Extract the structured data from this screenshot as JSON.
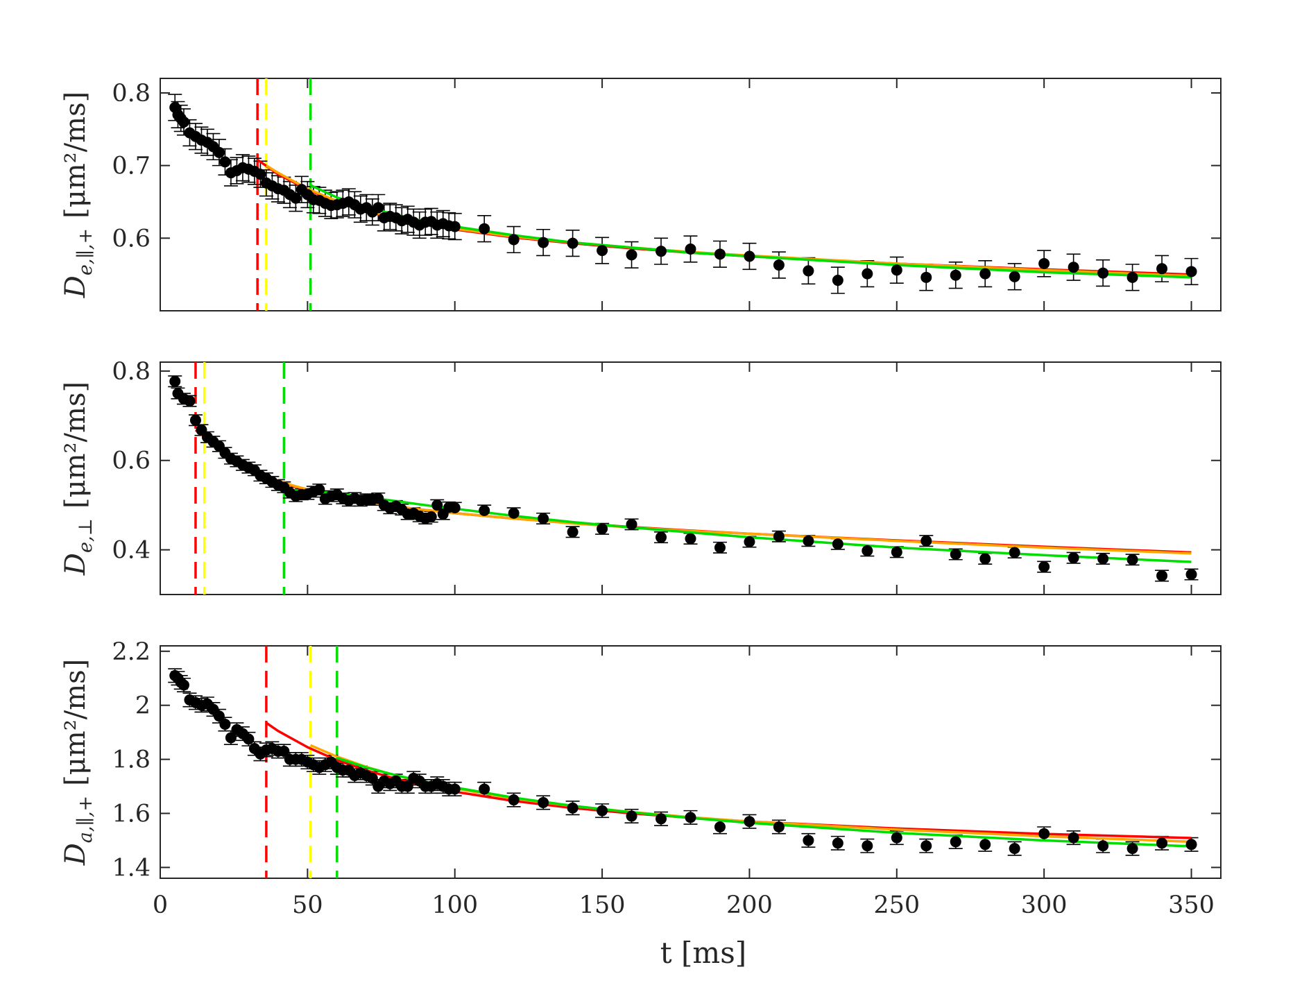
{
  "figure": {
    "xlabel": "t  [ms]"
  },
  "chart_data": [
    {
      "type": "scatter",
      "ylabel_main": "D",
      "ylabel_sub": "e,∥,+",
      "ylabel_unit": "[μm²/ms]",
      "xlim": [
        0,
        360
      ],
      "ylim": [
        0.5,
        0.82
      ],
      "xticks": [
        "0",
        "50",
        "100",
        "150",
        "200",
        "250",
        "300",
        "350"
      ],
      "yticks": [
        {
          "v": 0.6,
          "label": "0.6"
        },
        {
          "v": 0.7,
          "label": "0.7"
        },
        {
          "v": 0.8,
          "label": "0.8"
        }
      ],
      "data": {
        "x": [
          5,
          6,
          7,
          8,
          10,
          12,
          14,
          16,
          18,
          20,
          22,
          24,
          26,
          28,
          30,
          32,
          34,
          36,
          38,
          40,
          42,
          44,
          46,
          48,
          50,
          52,
          54,
          56,
          58,
          60,
          62,
          64,
          66,
          68,
          70,
          72,
          74,
          76,
          78,
          80,
          82,
          84,
          86,
          88,
          90,
          92,
          94,
          96,
          98,
          100,
          110,
          120,
          130,
          140,
          150,
          160,
          170,
          180,
          190,
          200,
          210,
          220,
          230,
          240,
          250,
          260,
          270,
          280,
          290,
          300,
          310,
          320,
          330,
          340,
          350
        ],
        "y": [
          0.78,
          0.77,
          0.765,
          0.76,
          0.745,
          0.74,
          0.735,
          0.732,
          0.726,
          0.718,
          0.705,
          0.69,
          0.693,
          0.697,
          0.695,
          0.692,
          0.688,
          0.676,
          0.672,
          0.668,
          0.666,
          0.66,
          0.655,
          0.667,
          0.66,
          0.653,
          0.652,
          0.648,
          0.645,
          0.646,
          0.648,
          0.65,
          0.646,
          0.64,
          0.642,
          0.636,
          0.642,
          0.628,
          0.63,
          0.628,
          0.624,
          0.626,
          0.622,
          0.618,
          0.622,
          0.623,
          0.618,
          0.62,
          0.617,
          0.616,
          0.613,
          0.598,
          0.594,
          0.593,
          0.583,
          0.577,
          0.582,
          0.585,
          0.578,
          0.575,
          0.563,
          0.555,
          0.542,
          0.551,
          0.556,
          0.546,
          0.549,
          0.551,
          0.547,
          0.565,
          0.56,
          0.552,
          0.546,
          0.558,
          0.554
        ],
        "err": 0.018
      },
      "vlines": [
        {
          "x": 33,
          "color": "#ff0000"
        },
        {
          "x": 36,
          "color": "#ffff00"
        },
        {
          "x": 51,
          "color": "#00dd00"
        }
      ],
      "fits": [
        {
          "color": "#ff0000",
          "x": [
            33,
            40,
            50,
            60,
            70,
            80,
            90,
            100,
            120,
            140,
            160,
            180,
            200,
            250,
            300,
            350
          ],
          "y": [
            0.708,
            0.688,
            0.667,
            0.65,
            0.637,
            0.627,
            0.619,
            0.612,
            0.601,
            0.593,
            0.586,
            0.58,
            0.575,
            0.565,
            0.557,
            0.55
          ]
        },
        {
          "color": "#ffa500",
          "x": [
            36,
            40,
            50,
            60,
            70,
            80,
            90,
            100,
            120,
            140,
            160,
            180,
            200,
            250,
            300,
            350
          ],
          "y": [
            0.7,
            0.69,
            0.668,
            0.651,
            0.638,
            0.628,
            0.62,
            0.613,
            0.602,
            0.594,
            0.587,
            0.581,
            0.576,
            0.565,
            0.556,
            0.548
          ]
        },
        {
          "color": "#00dd00",
          "x": [
            51,
            60,
            70,
            80,
            90,
            100,
            120,
            140,
            160,
            180,
            200,
            250,
            300,
            350
          ],
          "y": [
            0.673,
            0.656,
            0.643,
            0.632,
            0.623,
            0.616,
            0.604,
            0.594,
            0.587,
            0.58,
            0.575,
            0.563,
            0.553,
            0.546
          ]
        }
      ]
    },
    {
      "type": "scatter",
      "ylabel_main": "D",
      "ylabel_sub": "e,⊥",
      "ylabel_unit": "[μm²/ms]",
      "xlim": [
        0,
        360
      ],
      "ylim": [
        0.3,
        0.82
      ],
      "xticks": [
        "0",
        "50",
        "100",
        "150",
        "200",
        "250",
        "300",
        "350"
      ],
      "yticks": [
        {
          "v": 0.4,
          "label": "0.4"
        },
        {
          "v": 0.6,
          "label": "0.6"
        },
        {
          "v": 0.8,
          "label": "0.8"
        }
      ],
      "data": {
        "x": [
          5,
          6,
          8,
          10,
          12,
          14,
          16,
          18,
          20,
          22,
          24,
          26,
          28,
          30,
          32,
          34,
          36,
          38,
          40,
          42,
          44,
          46,
          48,
          50,
          52,
          54,
          56,
          58,
          60,
          62,
          64,
          66,
          68,
          70,
          72,
          74,
          76,
          78,
          80,
          82,
          84,
          86,
          88,
          90,
          92,
          94,
          96,
          98,
          100,
          110,
          120,
          130,
          140,
          150,
          160,
          170,
          180,
          190,
          200,
          210,
          220,
          230,
          240,
          250,
          260,
          270,
          280,
          290,
          300,
          310,
          320,
          330,
          340,
          350
        ],
        "y": [
          0.777,
          0.75,
          0.738,
          0.733,
          0.69,
          0.668,
          0.652,
          0.642,
          0.632,
          0.617,
          0.604,
          0.598,
          0.59,
          0.584,
          0.578,
          0.566,
          0.56,
          0.552,
          0.545,
          0.54,
          0.528,
          0.52,
          0.524,
          0.525,
          0.53,
          0.535,
          0.514,
          0.52,
          0.524,
          0.515,
          0.51,
          0.516,
          0.51,
          0.513,
          0.512,
          0.515,
          0.5,
          0.493,
          0.498,
          0.49,
          0.48,
          0.482,
          0.475,
          0.47,
          0.474,
          0.5,
          0.48,
          0.495,
          0.494,
          0.488,
          0.482,
          0.47,
          0.44,
          0.447,
          0.457,
          0.428,
          0.425,
          0.405,
          0.418,
          0.43,
          0.42,
          0.413,
          0.398,
          0.395,
          0.42,
          0.39,
          0.38,
          0.394,
          0.362,
          0.382,
          0.38,
          0.378,
          0.342,
          0.345
        ],
        "err": 0.012
      },
      "vlines": [
        {
          "x": 12,
          "color": "#ff0000"
        },
        {
          "x": 15,
          "color": "#ffff00"
        },
        {
          "x": 42,
          "color": "#00dd00"
        }
      ],
      "fits": [
        {
          "color": "#ff0000",
          "x": [
            12,
            15,
            20,
            25,
            30,
            35,
            40,
            45,
            50,
            60,
            70,
            80,
            90,
            100,
            120,
            140,
            160,
            180,
            200,
            250,
            300,
            350
          ],
          "y": [
            0.668,
            0.653,
            0.625,
            0.602,
            0.583,
            0.567,
            0.554,
            0.543,
            0.534,
            0.519,
            0.507,
            0.497,
            0.489,
            0.482,
            0.47,
            0.46,
            0.451,
            0.443,
            0.436,
            0.421,
            0.407,
            0.394
          ]
        },
        {
          "color": "#ffa500",
          "x": [
            15,
            20,
            25,
            30,
            35,
            40,
            45,
            50,
            60,
            70,
            80,
            90,
            100,
            120,
            140,
            160,
            180,
            200,
            250,
            300,
            350
          ],
          "y": [
            0.66,
            0.63,
            0.605,
            0.585,
            0.568,
            0.555,
            0.544,
            0.535,
            0.519,
            0.507,
            0.497,
            0.489,
            0.482,
            0.47,
            0.459,
            0.45,
            0.442,
            0.436,
            0.42,
            0.405,
            0.392
          ]
        },
        {
          "color": "#00dd00",
          "x": [
            42,
            50,
            60,
            70,
            80,
            90,
            100,
            120,
            140,
            160,
            180,
            200,
            250,
            300,
            350
          ],
          "y": [
            0.534,
            0.532,
            0.526,
            0.518,
            0.509,
            0.5,
            0.492,
            0.476,
            0.462,
            0.45,
            0.439,
            0.428,
            0.405,
            0.388,
            0.373
          ]
        }
      ]
    },
    {
      "type": "scatter",
      "ylabel_main": "D",
      "ylabel_sub": "a,∥,+",
      "ylabel_unit": "[μm²/ms]",
      "xlim": [
        0,
        360
      ],
      "ylim": [
        1.36,
        2.22
      ],
      "xticks": [
        "0",
        "50",
        "100",
        "150",
        "200",
        "250",
        "300",
        "350"
      ],
      "yticks": [
        {
          "v": 1.4,
          "label": "1.4"
        },
        {
          "v": 1.6,
          "label": "1.6"
        },
        {
          "v": 1.8,
          "label": "1.8"
        },
        {
          "v": 2.0,
          "label": "2"
        },
        {
          "v": 2.2,
          "label": "2.2"
        }
      ],
      "data": {
        "x": [
          5,
          6,
          7,
          8,
          10,
          12,
          14,
          16,
          18,
          20,
          22,
          24,
          26,
          28,
          30,
          32,
          34,
          36,
          38,
          40,
          42,
          44,
          46,
          48,
          50,
          52,
          54,
          56,
          58,
          60,
          62,
          64,
          66,
          68,
          70,
          72,
          74,
          76,
          78,
          80,
          82,
          84,
          86,
          88,
          90,
          92,
          94,
          96,
          98,
          100,
          110,
          120,
          130,
          140,
          150,
          160,
          170,
          180,
          190,
          200,
          210,
          220,
          230,
          240,
          250,
          260,
          270,
          280,
          290,
          300,
          310,
          320,
          330,
          340,
          350
        ],
        "y": [
          2.11,
          2.1,
          2.085,
          2.075,
          2.02,
          2.01,
          2.0,
          2.005,
          1.985,
          1.96,
          1.93,
          1.88,
          1.91,
          1.895,
          1.875,
          1.84,
          1.82,
          1.835,
          1.84,
          1.83,
          1.83,
          1.8,
          1.8,
          1.8,
          1.79,
          1.78,
          1.77,
          1.78,
          1.79,
          1.77,
          1.76,
          1.76,
          1.74,
          1.75,
          1.74,
          1.73,
          1.7,
          1.72,
          1.71,
          1.72,
          1.7,
          1.7,
          1.73,
          1.72,
          1.7,
          1.7,
          1.71,
          1.7,
          1.69,
          1.69,
          1.69,
          1.65,
          1.64,
          1.62,
          1.61,
          1.59,
          1.58,
          1.585,
          1.55,
          1.57,
          1.55,
          1.5,
          1.49,
          1.48,
          1.51,
          1.48,
          1.495,
          1.485,
          1.47,
          1.525,
          1.51,
          1.48,
          1.47,
          1.49,
          1.485
        ],
        "err": 0.025
      },
      "vlines": [
        {
          "x": 36,
          "color": "#ff0000"
        },
        {
          "x": 51,
          "color": "#ffff00"
        },
        {
          "x": 60,
          "color": "#00dd00"
        }
      ],
      "fits": [
        {
          "color": "#ff0000",
          "x": [
            36,
            40,
            50,
            60,
            70,
            80,
            90,
            100,
            120,
            140,
            160,
            180,
            200,
            250,
            300,
            350
          ],
          "y": [
            1.935,
            1.905,
            1.845,
            1.797,
            1.759,
            1.728,
            1.702,
            1.68,
            1.646,
            1.62,
            1.6,
            1.584,
            1.57,
            1.544,
            1.524,
            1.509
          ]
        },
        {
          "color": "#ffa500",
          "x": [
            51,
            60,
            70,
            80,
            90,
            100,
            120,
            140,
            160,
            180,
            200,
            250,
            300,
            350
          ],
          "y": [
            1.852,
            1.81,
            1.772,
            1.74,
            1.714,
            1.692,
            1.655,
            1.627,
            1.605,
            1.586,
            1.57,
            1.54,
            1.515,
            1.495
          ]
        },
        {
          "color": "#00dd00",
          "x": [
            60,
            70,
            80,
            90,
            100,
            120,
            140,
            160,
            180,
            200,
            250,
            300,
            350
          ],
          "y": [
            1.805,
            1.77,
            1.741,
            1.717,
            1.696,
            1.658,
            1.628,
            1.604,
            1.583,
            1.565,
            1.528,
            1.5,
            1.478
          ]
        }
      ]
    }
  ]
}
